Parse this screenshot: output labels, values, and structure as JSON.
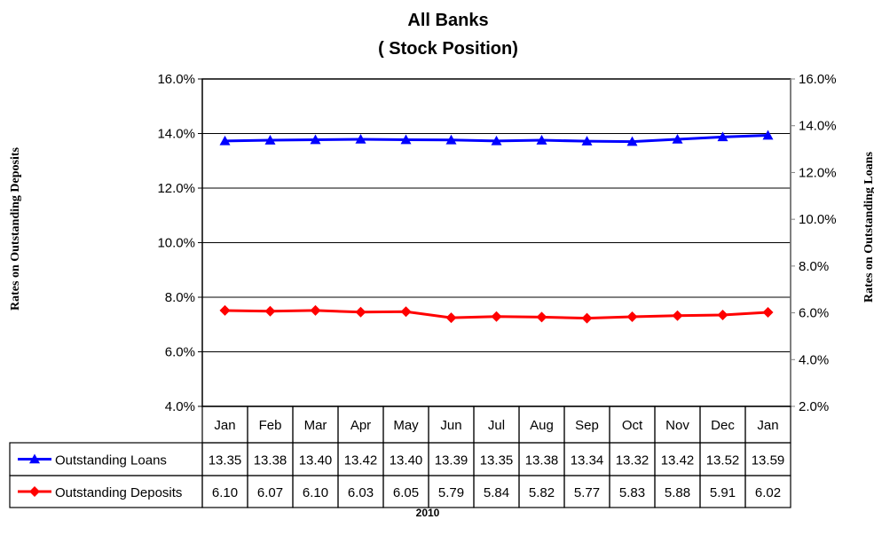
{
  "chart_data": {
    "type": "line",
    "title": [
      "All Banks",
      "( Stock Position)"
    ],
    "xlabel": "2010",
    "ylabel_left": "Rates on Outstanding Deposits",
    "ylabel_right": "Rates on Outstanding Loans",
    "categories": [
      "Jan",
      "Feb",
      "Mar",
      "Apr",
      "May",
      "Jun",
      "Jul",
      "Aug",
      "Sep",
      "Oct",
      "Nov",
      "Dec",
      "Jan"
    ],
    "y_left": {
      "min": 4.0,
      "max": 16.0,
      "step": 2.0,
      "ticks": [
        "4.0%",
        "6.0%",
        "8.0%",
        "10.0%",
        "12.0%",
        "14.0%",
        "16.0%"
      ]
    },
    "y_right": {
      "min": 2.0,
      "max": 16.0,
      "step": 2.0,
      "ticks": [
        "2.0%",
        "4.0%",
        "6.0%",
        "8.0%",
        "10.0%",
        "12.0%",
        "14.0%",
        "16.0%"
      ]
    },
    "grid": true,
    "legend": "data-table-below",
    "series": [
      {
        "name": "Outstanding Loans",
        "axis": "right",
        "color": "#0000ff",
        "marker": "triangle",
        "values": [
          13.35,
          13.38,
          13.4,
          13.42,
          13.4,
          13.39,
          13.35,
          13.38,
          13.34,
          13.32,
          13.42,
          13.52,
          13.59
        ],
        "labels": [
          "13.35",
          "13.38",
          "13.40",
          "13.42",
          "13.40",
          "13.39",
          "13.35",
          "13.38",
          "13.34",
          "13.32",
          "13.42",
          "13.52",
          "13.59"
        ]
      },
      {
        "name": "Outstanding Deposits",
        "axis": "right",
        "color": "#ff0000",
        "marker": "diamond",
        "values": [
          6.1,
          6.07,
          6.1,
          6.03,
          6.05,
          5.79,
          5.84,
          5.82,
          5.77,
          5.83,
          5.88,
          5.91,
          6.02
        ],
        "labels": [
          "6.10",
          "6.07",
          "6.10",
          "6.03",
          "6.05",
          "5.79",
          "5.84",
          "5.82",
          "5.77",
          "5.83",
          "5.88",
          "5.91",
          "6.02"
        ]
      }
    ]
  }
}
